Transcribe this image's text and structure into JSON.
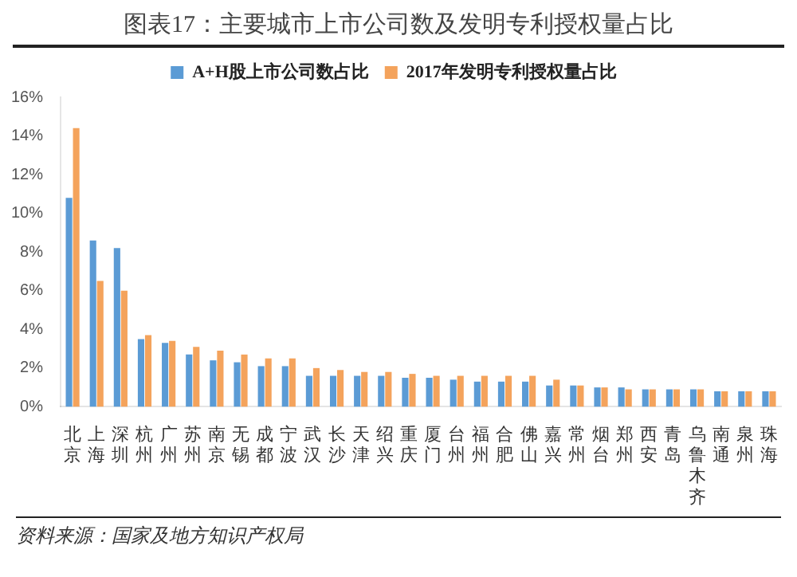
{
  "chart_data": {
    "type": "bar",
    "title": "图表17：主要城市上市公司数及发明专利授权量占比",
    "categories": [
      "北京",
      "上海",
      "深圳",
      "杭州",
      "广州",
      "苏州",
      "南京",
      "无锡",
      "成都",
      "宁波",
      "武汉",
      "长沙",
      "天津",
      "绍兴",
      "重庆",
      "厦门",
      "台州",
      "福州",
      "合肥",
      "佛山",
      "嘉兴",
      "常州",
      "烟台",
      "郑州",
      "西安",
      "青岛",
      "乌鲁木齐",
      "南通",
      "泉州",
      "珠海"
    ],
    "series": [
      {
        "name": "A+H股上市公司数占比",
        "color": "#5b9bd5",
        "values": [
          10.8,
          8.6,
          8.2,
          3.5,
          3.3,
          2.7,
          2.4,
          2.3,
          2.1,
          2.1,
          1.6,
          1.6,
          1.6,
          1.6,
          1.5,
          1.5,
          1.4,
          1.3,
          1.3,
          1.3,
          1.1,
          1.1,
          1.0,
          1.0,
          0.9,
          0.9,
          0.9,
          0.8,
          0.8,
          0.8
        ]
      },
      {
        "name": "2017年发明专利授权量占比",
        "color": "#f4a35c",
        "values": [
          14.4,
          6.5,
          6.0,
          3.7,
          3.4,
          3.1,
          2.9,
          2.7,
          2.5,
          2.5,
          2.0,
          1.9,
          1.8,
          1.8,
          1.7,
          1.6,
          1.6,
          1.6,
          1.6,
          1.6,
          1.4,
          1.1,
          1.0,
          0.9,
          0.9,
          0.9,
          0.9,
          0.8,
          0.8,
          0.8
        ]
      }
    ],
    "ylim": [
      0,
      16
    ],
    "yticks": [
      {
        "value": 0,
        "label": "0%"
      },
      {
        "value": 2,
        "label": "2%"
      },
      {
        "value": 4,
        "label": "4%"
      },
      {
        "value": 6,
        "label": "6%"
      },
      {
        "value": 8,
        "label": "8%"
      },
      {
        "value": 10,
        "label": "10%"
      },
      {
        "value": 12,
        "label": "12%"
      },
      {
        "value": 14,
        "label": "14%"
      },
      {
        "value": 16,
        "label": "16%"
      }
    ],
    "grid": false,
    "legend": "top",
    "annotations": [
      "资料来源：国家及地方知识产权局"
    ]
  }
}
